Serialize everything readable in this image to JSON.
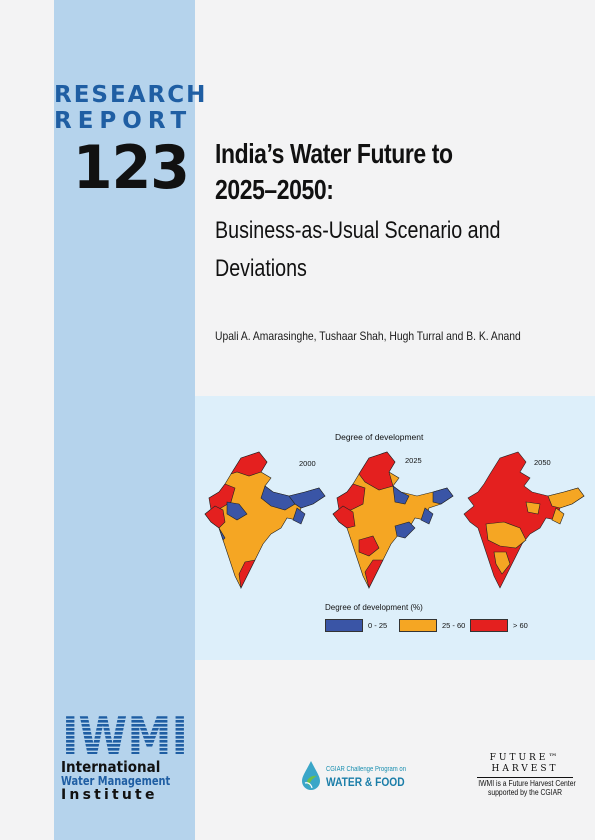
{
  "series": {
    "label_line1": "RESEARCH",
    "label_line2": "REPORT",
    "number": "123"
  },
  "title": {
    "line1": "India’s Water Future to",
    "line2": "2025–2050:",
    "subtitle_line1": "Business-as-Usual Scenario and",
    "subtitle_line2": "Deviations"
  },
  "authors": "Upali A. Amarasinghe, Tushaar Shah, Hugh Turral and B. K. Anand",
  "figure": {
    "title": "Degree of  development",
    "years": [
      "2000",
      "2025",
      "2050"
    ],
    "legend_title": "Degree of development (%)",
    "legend": [
      {
        "label": "0 - 25",
        "color": "#3a55a6"
      },
      {
        "label": "25 - 60",
        "color": "#f5a623"
      },
      {
        "label": "> 60",
        "color": "#e4201f"
      }
    ]
  },
  "logos": {
    "iwmi": {
      "mark": "IWMI",
      "line1": "International",
      "line2": "Water Management",
      "line3": "Institute",
      "color": "#1f5ea3"
    },
    "challenge_program": {
      "line1": "CGIAR Challenge Program on",
      "line2": "WATER & FOOD"
    },
    "future_harvest": {
      "line1": "FUTURE™",
      "line2": "HARVEST",
      "line3": "IWMI is a Future Harvest Center",
      "line4": "supported by the CGIAR"
    }
  },
  "colors": {
    "side_band": "#b5d3ec",
    "series_label": "#1f5ea3",
    "figure_background": "#ddeffa"
  }
}
